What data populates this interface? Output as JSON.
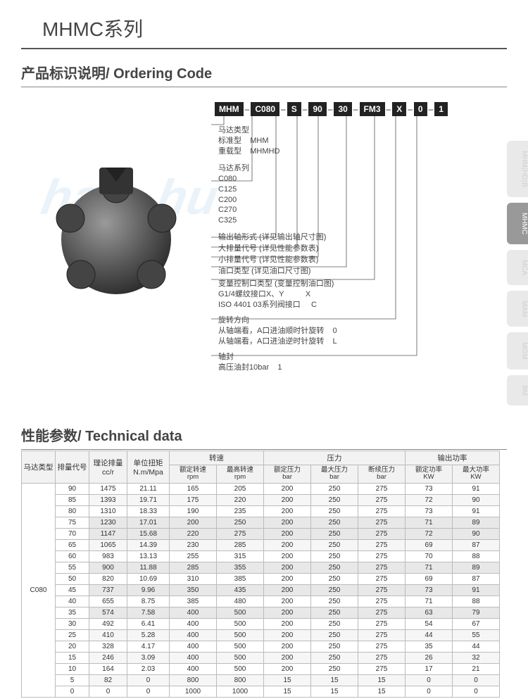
{
  "page_title": "MHMC系列",
  "section1_title": "产品标识说明/ Ordering Code",
  "section2_title": "性能参数/ Technical data",
  "code_boxes": [
    "MHM",
    "C080",
    "S",
    "90",
    "30",
    "FM3",
    "X",
    "0",
    "1"
  ],
  "desc": {
    "d1": {
      "hd": "马达类型",
      "rows": [
        "标准型    MHM",
        "重载型    MHMHD"
      ]
    },
    "d2": {
      "hd": "马达系列",
      "rows": [
        "C080",
        "C125",
        "C200",
        "C270",
        "C325"
      ]
    },
    "d3": {
      "hd": "输出轴形式 (详见输出轴尺寸图)"
    },
    "d4": {
      "hd": "大排量代号 (详见性能参数表)"
    },
    "d5": {
      "hd": "小排量代号 (详见性能参数表)"
    },
    "d6": {
      "hd": "油口类型 (详见油口尺寸图)"
    },
    "d7": {
      "hd": "变量控制口类型 (变量控制油口图)",
      "rows": [
        "G1/4螺纹接口X、Y          X",
        "ISO 4401 03系列阀接口     C"
      ]
    },
    "d8": {
      "hd": "旋转方向",
      "rows": [
        "从轴端看，A口进油顺时针旋转    0",
        "从轴端看，A口进油逆时针旋转    L"
      ]
    },
    "d9": {
      "hd": "轴封",
      "rows": [
        "高压油封10bar    1"
      ]
    }
  },
  "tabs": [
    {
      "label": "MHM(HD)B",
      "active": false
    },
    {
      "label": "MHMC",
      "active": true
    },
    {
      "label": "MCA",
      "active": false
    },
    {
      "label": "MAM",
      "active": false
    },
    {
      "label": "MGM",
      "active": false
    },
    {
      "label": "BM",
      "active": false
    }
  ],
  "table": {
    "group_headers": {
      "c1": "马达类型",
      "c2": "排量代号",
      "c3": "理论排量\ncc/r",
      "c4": "单位扭矩\nN.m/Mpa",
      "g1": "转速",
      "g2": "压力",
      "g3": "输出功率"
    },
    "sub_headers": [
      "额定转速\nrpm",
      "最高转速\nrpm",
      "额定压力\nbar",
      "最大压力\nbar",
      "断续压力\nbar",
      "额定功率\nKW",
      "最大功率\nKW"
    ],
    "model": "C080",
    "rows": [
      [
        "90",
        "1475",
        "21.11",
        "165",
        "205",
        "200",
        "250",
        "275",
        "73",
        "91"
      ],
      [
        "85",
        "1393",
        "19.71",
        "175",
        "220",
        "200",
        "250",
        "275",
        "72",
        "90"
      ],
      [
        "80",
        "1310",
        "18.33",
        "190",
        "235",
        "200",
        "250",
        "275",
        "73",
        "91"
      ],
      [
        "75",
        "1230",
        "17.01",
        "200",
        "250",
        "200",
        "250",
        "275",
        "71",
        "89"
      ],
      [
        "70",
        "1147",
        "15.68",
        "220",
        "275",
        "200",
        "250",
        "275",
        "72",
        "90"
      ],
      [
        "65",
        "1065",
        "14.39",
        "230",
        "285",
        "200",
        "250",
        "275",
        "69",
        "87"
      ],
      [
        "60",
        "983",
        "13.13",
        "255",
        "315",
        "200",
        "250",
        "275",
        "70",
        "88"
      ],
      [
        "55",
        "900",
        "11.88",
        "285",
        "355",
        "200",
        "250",
        "275",
        "71",
        "89"
      ],
      [
        "50",
        "820",
        "10.69",
        "310",
        "385",
        "200",
        "250",
        "275",
        "69",
        "87"
      ],
      [
        "45",
        "737",
        "9.96",
        "350",
        "435",
        "200",
        "250",
        "275",
        "73",
        "91"
      ],
      [
        "40",
        "655",
        "8.75",
        "385",
        "480",
        "200",
        "250",
        "275",
        "71",
        "88"
      ],
      [
        "35",
        "574",
        "7.58",
        "400",
        "500",
        "200",
        "250",
        "275",
        "63",
        "79"
      ],
      [
        "30",
        "492",
        "6.41",
        "400",
        "500",
        "200",
        "250",
        "275",
        "54",
        "67"
      ],
      [
        "25",
        "410",
        "5.28",
        "400",
        "500",
        "200",
        "250",
        "275",
        "44",
        "55"
      ],
      [
        "20",
        "328",
        "4.17",
        "400",
        "500",
        "200",
        "250",
        "275",
        "35",
        "44"
      ],
      [
        "15",
        "246",
        "3.09",
        "400",
        "500",
        "200",
        "250",
        "275",
        "26",
        "32"
      ],
      [
        "10",
        "164",
        "2.03",
        "400",
        "500",
        "200",
        "250",
        "275",
        "17",
        "21"
      ],
      [
        "5",
        "82",
        "0",
        "800",
        "800",
        "15",
        "15",
        "15",
        "0",
        "0"
      ],
      [
        "0",
        "0",
        "0",
        "1000",
        "1000",
        "15",
        "15",
        "15",
        "0",
        "0"
      ]
    ],
    "highlight_rows": [
      3,
      4,
      7,
      9,
      11
    ]
  },
  "colors": {
    "border": "#bbbbbb",
    "header_bg": "#f2f2f2",
    "zebra_even": "#f6f6f6",
    "highlight": "#e8e8e8",
    "tab_inactive_bg": "#e9e9e9",
    "tab_active_bg": "#999999",
    "wm": "rgba(140,190,230,0.18)"
  }
}
